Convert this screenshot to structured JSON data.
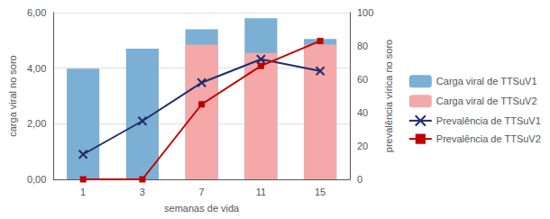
{
  "chart_data": {
    "type": "bar",
    "categories": [
      "1",
      "3",
      "7",
      "11",
      "15"
    ],
    "xlabel": "semanas de vida",
    "ylabel": "carga viral no soro",
    "y2label": "prevalência vírica no soro",
    "ylim": [
      0,
      6.0
    ],
    "yticks": [
      {
        "value": 0.0,
        "label": "0,00"
      },
      {
        "value": 2.0,
        "label": "2,00"
      },
      {
        "value": 4.0,
        "label": "4,00"
      },
      {
        "value": 6.0,
        "label": "6,00"
      }
    ],
    "y2lim": [
      0,
      100
    ],
    "y2ticks": [
      0,
      20,
      40,
      60,
      80,
      100
    ],
    "grid": true,
    "legend": "right",
    "series": [
      {
        "name": "Carga viral de TTSuV1",
        "type": "bar",
        "color": "#7bafd4",
        "values": [
          3.98,
          4.7,
          5.4,
          5.8,
          5.05
        ]
      },
      {
        "name": "Carga viral de TTSuV2",
        "type": "bar",
        "color": "#f4a8a8",
        "values": [
          0.0,
          0.0,
          4.85,
          4.55,
          4.85
        ]
      },
      {
        "name": "Prevalência de TTSuV1",
        "type": "line",
        "axis": "y2",
        "color": "#1f2d6e",
        "marker": "x",
        "values": [
          15,
          35,
          58,
          72,
          65
        ]
      },
      {
        "name": "Prevalência de TTSuV2",
        "type": "line",
        "axis": "y2",
        "color": "#c00000",
        "marker": "square",
        "values": [
          0,
          0,
          45,
          68,
          83
        ]
      }
    ]
  }
}
